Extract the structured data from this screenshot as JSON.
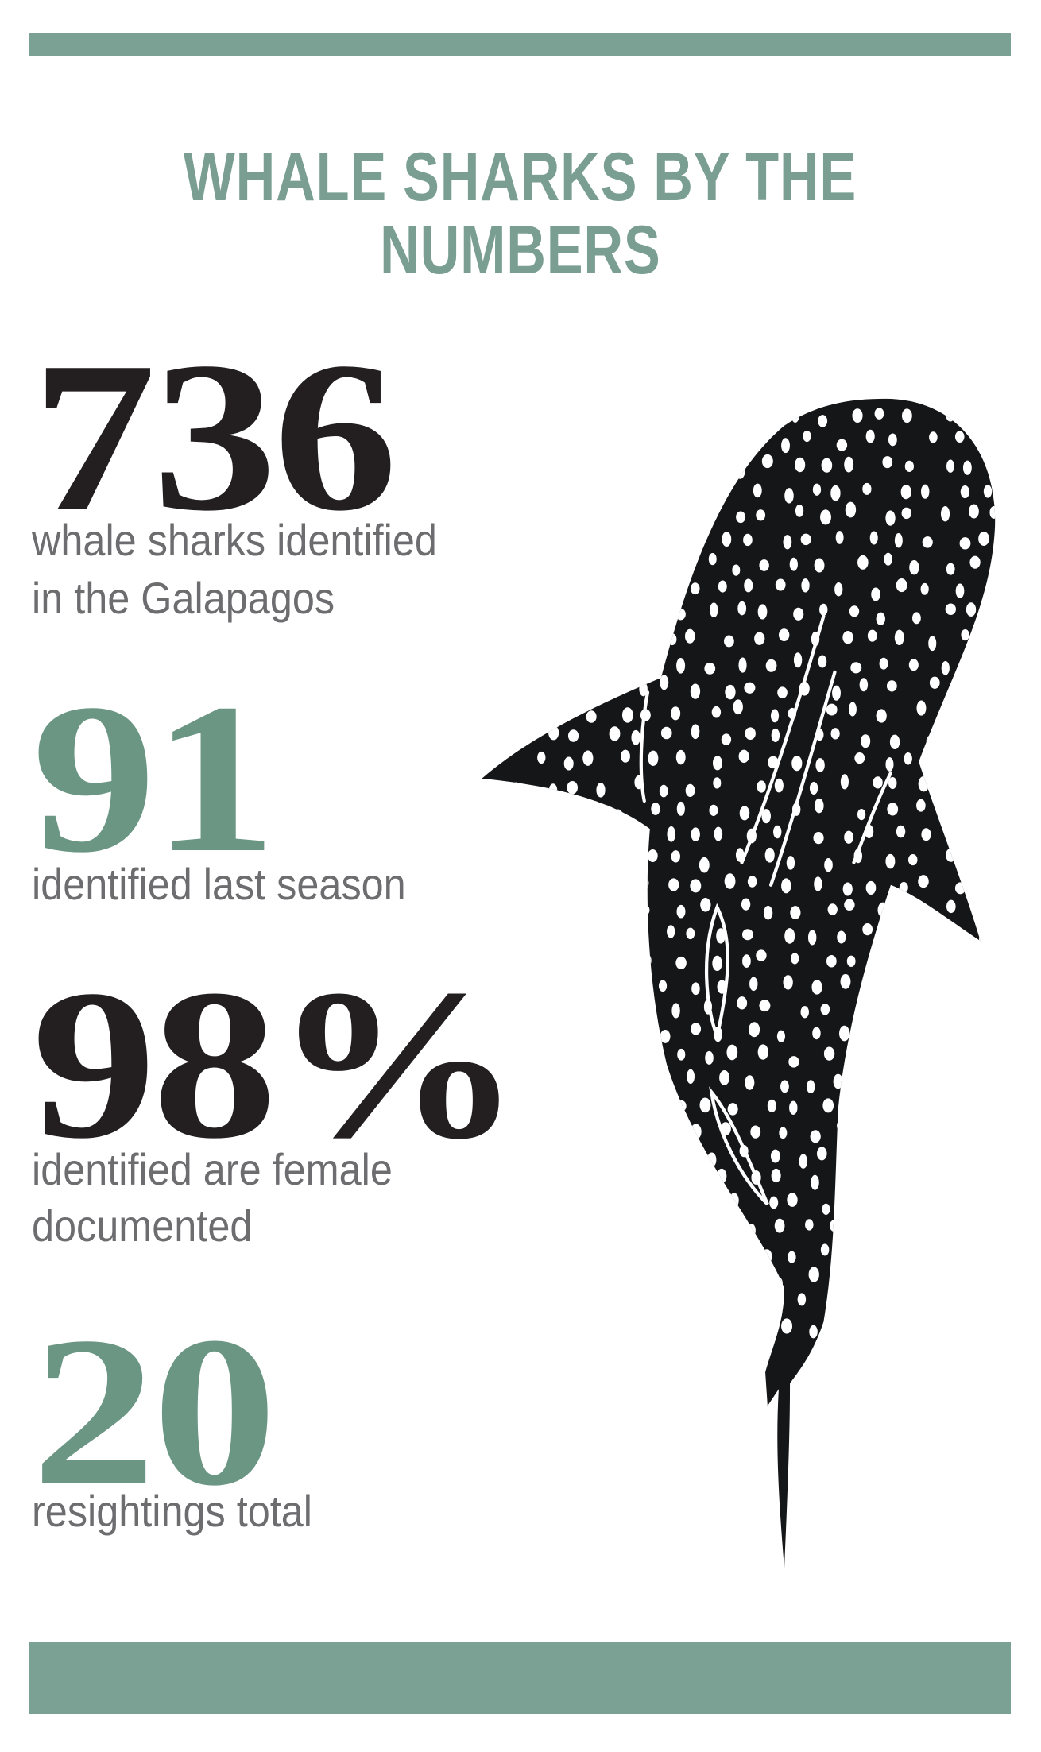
{
  "title": {
    "line1": "WHALE SHARKS BY THE",
    "line2": "NUMBERS"
  },
  "stats": [
    {
      "value": "736",
      "caption_lines": [
        "whale sharks identified",
        "in the Galapagos"
      ],
      "color": "#231f20"
    },
    {
      "value": "91",
      "caption_lines": [
        "identified last season"
      ],
      "color": "#6a9683"
    },
    {
      "value": "98%",
      "caption_lines": [
        "identified are female",
        "documented"
      ],
      "color": "#231f20"
    },
    {
      "value": "20",
      "caption_lines": [
        "resightings total"
      ],
      "color": "#6a9683"
    }
  ],
  "colors": {
    "accent": "#7ba094",
    "title": "#7a9e92",
    "text": "#6d6d70",
    "shark": "#141618"
  },
  "illustration": "whale-shark-illustration"
}
